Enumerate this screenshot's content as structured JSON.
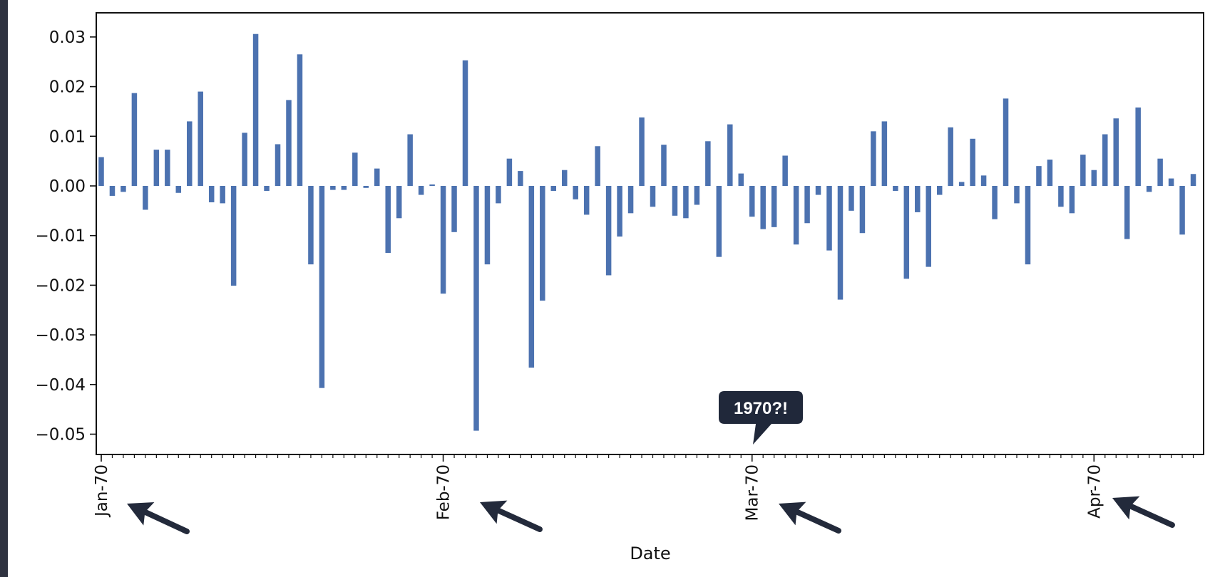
{
  "chart_data": {
    "type": "bar",
    "title": "",
    "xlabel": "Date",
    "ylabel": "",
    "ylim": [
      -0.054,
      0.035
    ],
    "yticks": [
      0.03,
      0.02,
      0.01,
      0.0,
      -0.01,
      -0.02,
      -0.03,
      -0.04,
      -0.05
    ],
    "ytick_labels": [
      "0.03",
      "0.02",
      "0.01",
      "0.00",
      "−0.01",
      "−0.02",
      "−0.03",
      "−0.04",
      "−0.05"
    ],
    "xticks": [
      {
        "index": 0,
        "label": "Jan-70"
      },
      {
        "index": 31,
        "label": "Feb-70"
      },
      {
        "index": 59,
        "label": "Mar-70"
      },
      {
        "index": 90,
        "label": "Apr-70"
      }
    ],
    "values": [
      0.0058,
      -0.002,
      -0.0012,
      0.0187,
      -0.0048,
      0.0073,
      0.0073,
      -0.0014,
      0.013,
      0.019,
      -0.0033,
      -0.0035,
      -0.0201,
      0.0107,
      0.0306,
      -0.001,
      0.0084,
      0.0173,
      0.0265,
      -0.0158,
      -0.0407,
      -0.0008,
      -0.0008,
      0.0067,
      -0.0004,
      0.0035,
      -0.0135,
      -0.0065,
      0.0104,
      -0.0018,
      0.0003,
      -0.0217,
      -0.0093,
      0.0253,
      -0.0493,
      -0.0158,
      -0.0035,
      0.0055,
      0.003,
      -0.0366,
      -0.0231,
      -0.001,
      0.0032,
      -0.0027,
      -0.0058,
      0.008,
      -0.018,
      -0.0102,
      -0.0055,
      0.0138,
      -0.0042,
      0.0083,
      -0.006,
      -0.0065,
      -0.0038,
      0.009,
      -0.0143,
      0.0124,
      0.0025,
      -0.0062,
      -0.0087,
      -0.0083,
      0.0061,
      -0.0118,
      -0.0075,
      -0.0018,
      -0.013,
      -0.0229,
      -0.005,
      -0.0095,
      0.011,
      0.013,
      -0.001,
      -0.0187,
      -0.0053,
      -0.0163,
      -0.0018,
      0.0118,
      0.0008,
      0.0095,
      0.0021,
      -0.0067,
      0.0176,
      -0.0035,
      -0.0158,
      0.004,
      0.0053,
      -0.0042,
      -0.0055,
      0.0063,
      0.0032,
      0.0104,
      0.0136,
      -0.0107,
      0.0158,
      -0.0012,
      0.0055,
      0.0015,
      -0.0098,
      0.0024
    ],
    "bar_color": "#4c72b0",
    "grid": false,
    "annotations": {
      "callout": "1970?!",
      "arrows_point_to": [
        "Jan-70",
        "Feb-70",
        "Mar-70",
        "Apr-70"
      ]
    }
  },
  "colors": {
    "callout_bg": "#20283a",
    "arrow": "#232a3b",
    "left_bar": "#2f3340"
  }
}
